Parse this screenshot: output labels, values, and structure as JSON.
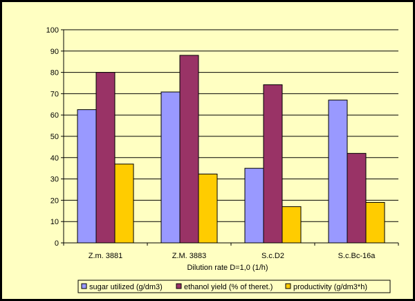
{
  "chart_data": {
    "type": "bar",
    "categories": [
      "Z.m. 3881",
      "Z.M. 3883",
      "S.c.D2",
      "S.c.Bc-16a"
    ],
    "series": [
      {
        "name": "sugar utilized (g/dm3)",
        "color": "#9999FF",
        "values": [
          62.5,
          70.8,
          35,
          67
        ]
      },
      {
        "name": "ethanol yield (% of theret.)",
        "color": "#993366",
        "values": [
          80,
          88,
          74.2,
          42
        ]
      },
      {
        "name": "productivity (g/dm3*h)",
        "color": "#FFCC00",
        "values": [
          37,
          32.3,
          17,
          19
        ]
      }
    ],
    "xlabel": "Dilution rate D=1,0 (1/h)",
    "ylabel": "",
    "ylim": [
      0,
      100
    ],
    "yticks": [
      0,
      10,
      20,
      30,
      40,
      50,
      60,
      70,
      80,
      90,
      100
    ],
    "grid": true,
    "legend_position": "bottom",
    "background": "#FFFFC2"
  }
}
